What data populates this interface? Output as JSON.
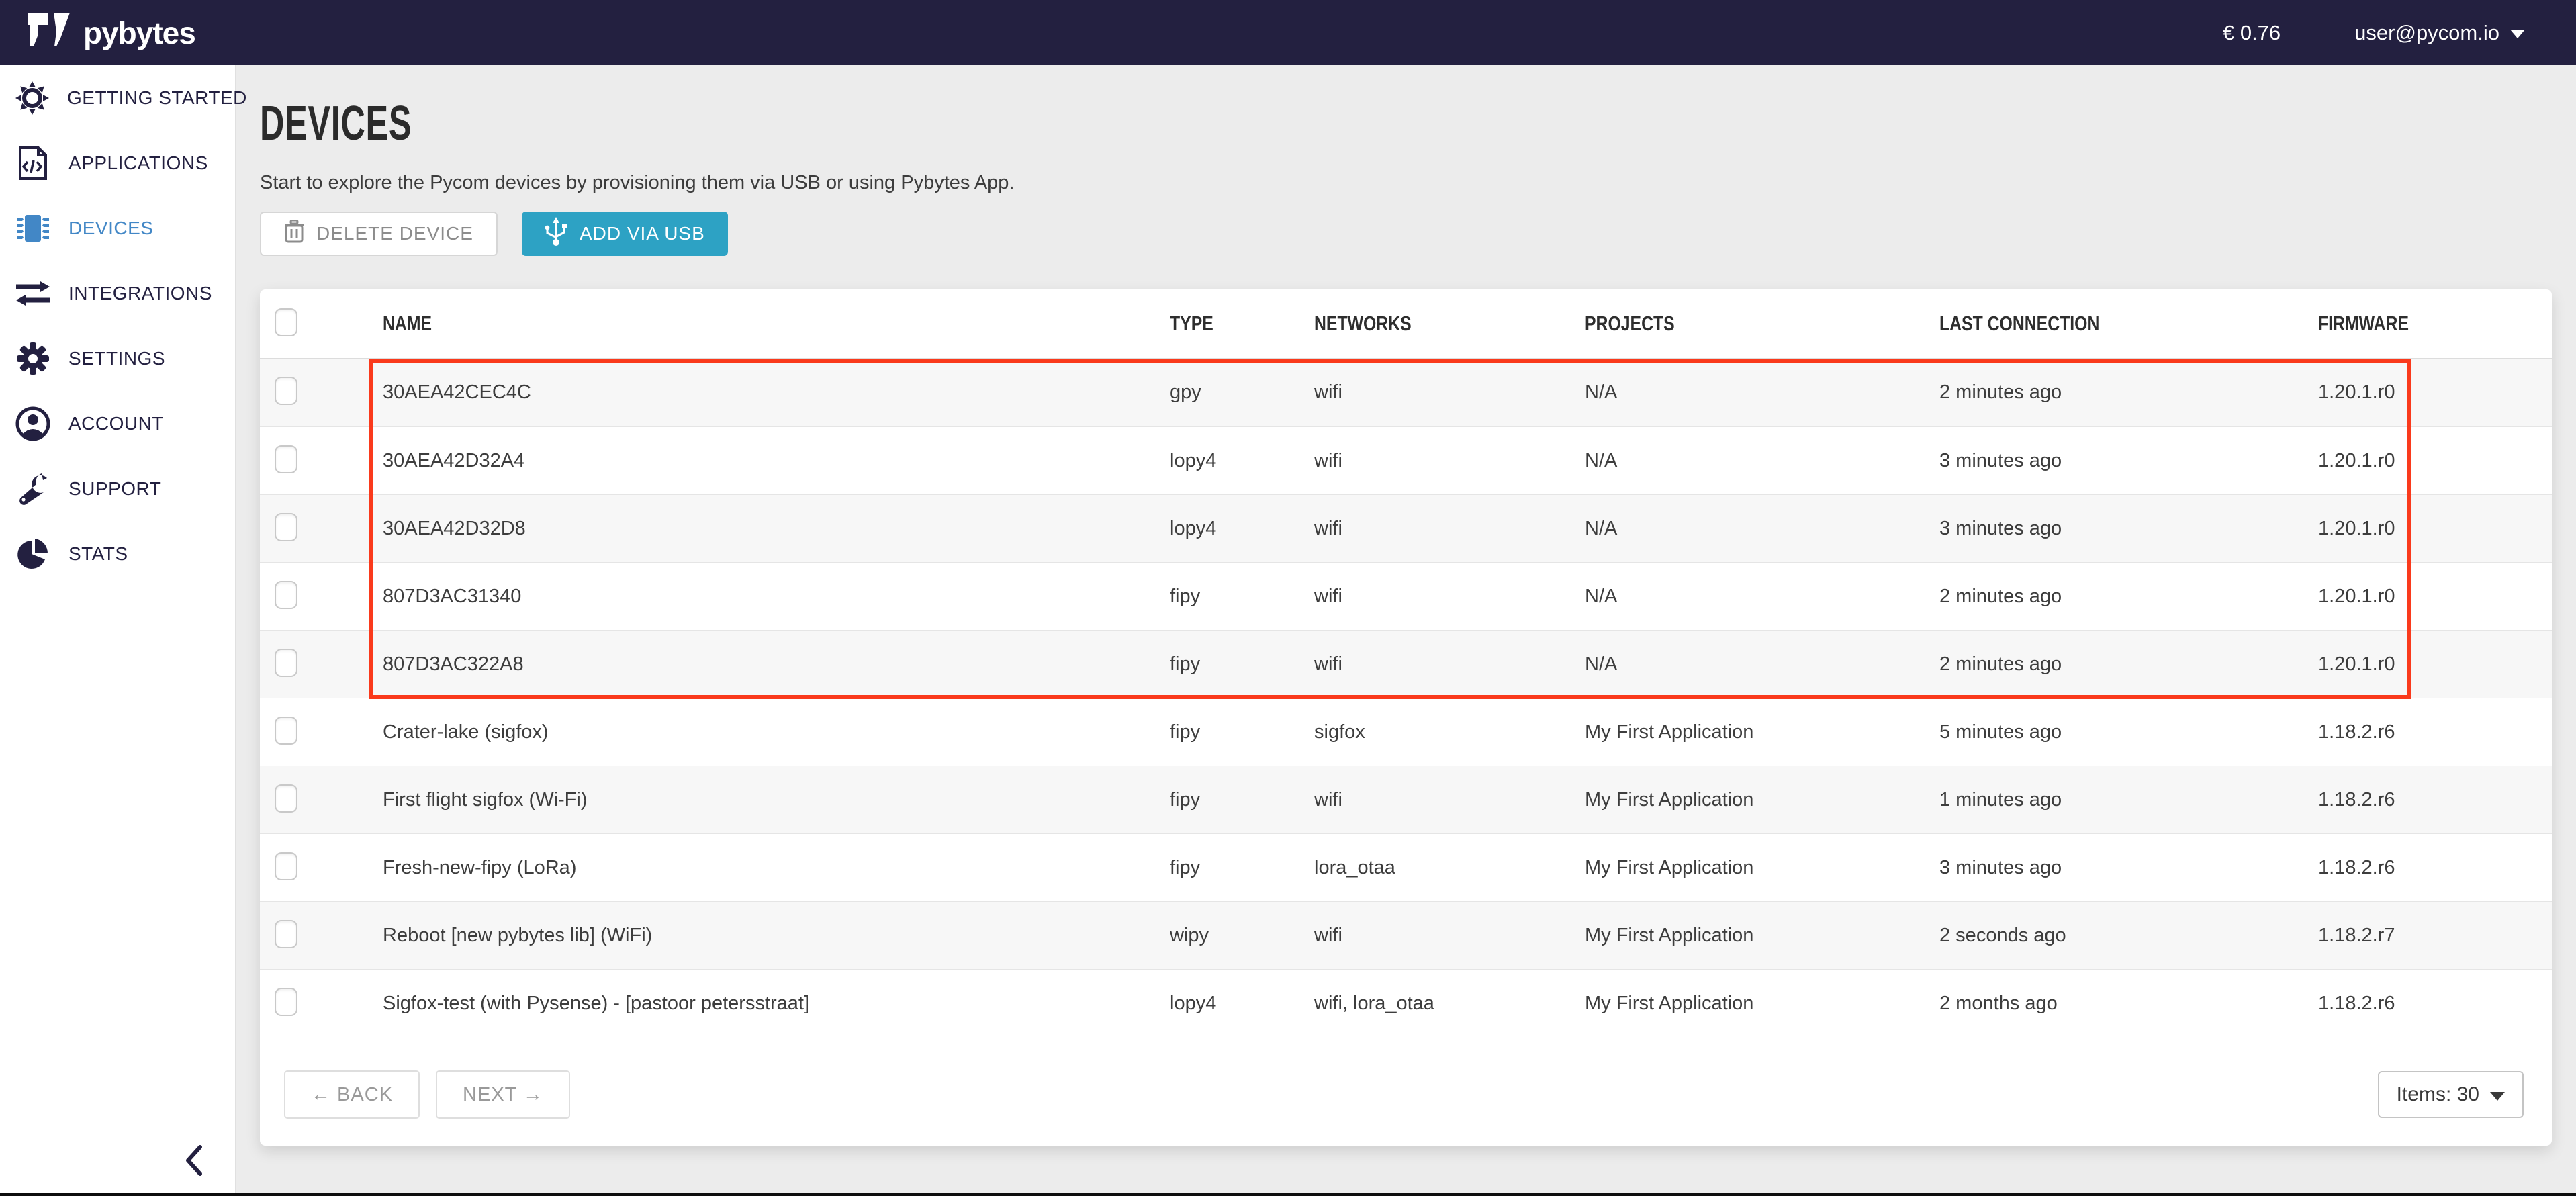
{
  "topbar": {
    "logo_text": "pybytes",
    "balance": "€ 0.76",
    "user_email": "user@pycom.io"
  },
  "sidebar": {
    "items": [
      {
        "id": "getting-started",
        "label": "GETTING STARTED",
        "icon": "sun-icon",
        "active": false
      },
      {
        "id": "applications",
        "label": "APPLICATIONS",
        "icon": "code-document-icon",
        "active": false
      },
      {
        "id": "devices",
        "label": "DEVICES",
        "icon": "chip-icon",
        "active": true
      },
      {
        "id": "integrations",
        "label": "INTEGRATIONS",
        "icon": "arrows-exchange-icon",
        "active": false
      },
      {
        "id": "settings",
        "label": "SETTINGS",
        "icon": "gear-icon",
        "active": false
      },
      {
        "id": "account",
        "label": "ACCOUNT",
        "icon": "user-circle-icon",
        "active": false
      },
      {
        "id": "support",
        "label": "SUPPORT",
        "icon": "wrench-icon",
        "active": false
      },
      {
        "id": "stats",
        "label": "STATS",
        "icon": "pie-chart-icon",
        "active": false
      }
    ]
  },
  "page": {
    "title": "DEVICES",
    "subtitle": "Start to explore the Pycom devices by provisioning them via USB or using Pybytes App.",
    "toolbar": {
      "delete_label": "DELETE DEVICE",
      "add_label": "ADD VIA USB"
    }
  },
  "table": {
    "columns": [
      "NAME",
      "TYPE",
      "NETWORKS",
      "PROJECTS",
      "LAST CONNECTION",
      "FIRMWARE"
    ],
    "rows": [
      {
        "name": "30AEA42CEC4C",
        "type": "gpy",
        "networks": "wifi",
        "projects": "N/A",
        "last_connection": "2 minutes ago",
        "firmware": "1.20.1.r0",
        "highlighted": true
      },
      {
        "name": "30AEA42D32A4",
        "type": "lopy4",
        "networks": "wifi",
        "projects": "N/A",
        "last_connection": "3 minutes ago",
        "firmware": "1.20.1.r0",
        "highlighted": true
      },
      {
        "name": "30AEA42D32D8",
        "type": "lopy4",
        "networks": "wifi",
        "projects": "N/A",
        "last_connection": "3 minutes ago",
        "firmware": "1.20.1.r0",
        "highlighted": true
      },
      {
        "name": "807D3AC31340",
        "type": "fipy",
        "networks": "wifi",
        "projects": "N/A",
        "last_connection": "2 minutes ago",
        "firmware": "1.20.1.r0",
        "highlighted": true
      },
      {
        "name": "807D3AC322A8",
        "type": "fipy",
        "networks": "wifi",
        "projects": "N/A",
        "last_connection": "2 minutes ago",
        "firmware": "1.20.1.r0",
        "highlighted": true
      },
      {
        "name": "Crater-lake (sigfox)",
        "type": "fipy",
        "networks": "sigfox",
        "projects": "My First Application",
        "last_connection": "5 minutes ago",
        "firmware": "1.18.2.r6",
        "highlighted": false
      },
      {
        "name": "First flight sigfox (Wi-Fi)",
        "type": "fipy",
        "networks": "wifi",
        "projects": "My First Application",
        "last_connection": "1 minutes ago",
        "firmware": "1.18.2.r6",
        "highlighted": false
      },
      {
        "name": "Fresh-new-fipy (LoRa)",
        "type": "fipy",
        "networks": "lora_otaa",
        "projects": "My First Application",
        "last_connection": "3 minutes ago",
        "firmware": "1.18.2.r6",
        "highlighted": false
      },
      {
        "name": "Reboot [new pybytes lib] (WiFi)",
        "type": "wipy",
        "networks": "wifi",
        "projects": "My First Application",
        "last_connection": "2 seconds ago",
        "firmware": "1.18.2.r7",
        "highlighted": false
      },
      {
        "name": "Sigfox-test (with Pysense) - [pastoor petersstraat]",
        "type": "lopy4",
        "networks": "wifi, lora_otaa",
        "projects": "My First Application",
        "last_connection": "2 months ago",
        "firmware": "1.18.2.r6",
        "highlighted": false
      }
    ]
  },
  "pagination": {
    "back_label": "← BACK",
    "next_label": "NEXT →",
    "items_label": "Items: 30"
  },
  "colors": {
    "topbar_navy": "#232040",
    "active_blue": "#4287c6",
    "teal_button": "#2da2c4",
    "highlight_red": "#fa3a1c",
    "row_stripe": "#f7f7f7"
  }
}
